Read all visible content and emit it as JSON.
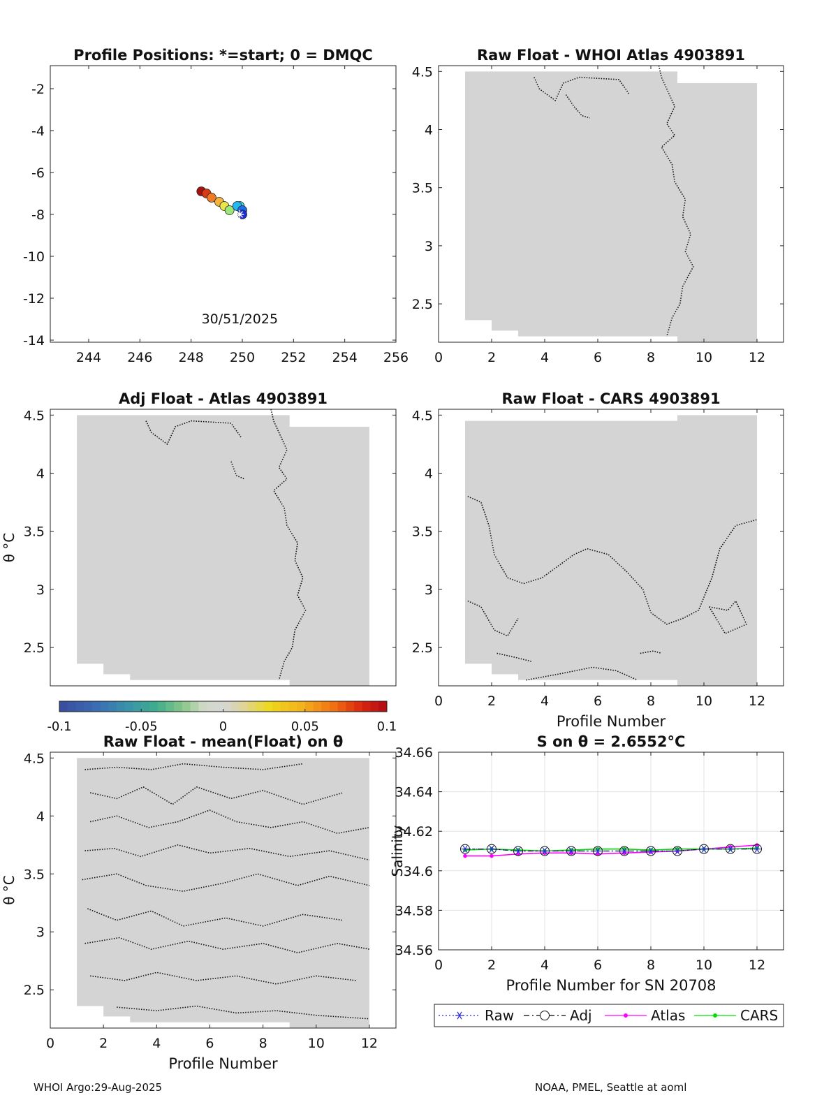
{
  "footer": {
    "left": "WHOI Argo:29-Aug-2025",
    "right": "NOAA, PMEL, Seattle at aoml"
  },
  "colorbar": {
    "ticks": [
      "-0.1",
      "-0.05",
      "0",
      "0.05",
      "0.1"
    ]
  },
  "chart_data": [
    {
      "id": "positions",
      "type": "scatter",
      "title": "Profile Positions: *=start; 0 = DMQC",
      "annotation": "30/51/2025",
      "xlim": [
        242.5,
        256
      ],
      "ylim": [
        -14.1,
        -0.9
      ],
      "xticks": [
        244,
        246,
        248,
        250,
        252,
        254,
        256
      ],
      "yticks": [
        -2,
        -4,
        -6,
        -8,
        -10,
        -12,
        -14
      ],
      "points": [
        {
          "x": 250.0,
          "y": -8.0,
          "color": "#1a2cd6"
        },
        {
          "x": 250.0,
          "y": -7.8,
          "color": "#1e6ef0"
        },
        {
          "x": 249.8,
          "y": -7.6,
          "color": "#25b8f0"
        },
        {
          "x": 249.9,
          "y": -7.6,
          "color": "#40e0e6"
        },
        {
          "x": 249.5,
          "y": -7.8,
          "color": "#9ee87a"
        },
        {
          "x": 249.3,
          "y": -7.6,
          "color": "#e8e64a"
        },
        {
          "x": 249.1,
          "y": -7.4,
          "color": "#f5b53a"
        },
        {
          "x": 248.8,
          "y": -7.2,
          "color": "#f07a22"
        },
        {
          "x": 248.6,
          "y": -7.0,
          "color": "#d93a14"
        },
        {
          "x": 248.4,
          "y": -6.9,
          "color": "#a8110e"
        }
      ],
      "start": {
        "x": 249.9,
        "y": -8.0
      }
    },
    {
      "id": "raw-whoi",
      "type": "heatmap",
      "title": "Raw Float - WHOI Atlas  4903891",
      "xlim": [
        0,
        13
      ],
      "ylim": [
        2.17,
        4.55
      ],
      "xticks": [
        0,
        2,
        4,
        6,
        8,
        10,
        12
      ],
      "yticks": [
        2.5,
        3,
        3.5,
        4,
        4.5
      ],
      "region": [
        [
          1,
          2.36,
          4.5
        ],
        [
          2,
          2.27,
          4.5
        ],
        [
          3,
          2.22,
          4.5
        ],
        [
          8,
          2.22,
          4.5
        ],
        [
          9,
          2.17,
          4.4
        ],
        [
          12,
          2.17,
          4.4
        ]
      ],
      "contours": [
        [
          [
            8.3,
            4.55
          ],
          [
            8.4,
            4.45
          ],
          [
            8.7,
            4.3
          ],
          [
            8.9,
            4.2
          ],
          [
            8.6,
            4.05
          ],
          [
            8.9,
            3.95
          ],
          [
            8.4,
            3.85
          ],
          [
            8.8,
            3.7
          ],
          [
            8.9,
            3.55
          ],
          [
            9.3,
            3.4
          ],
          [
            9.2,
            3.25
          ],
          [
            9.5,
            3.1
          ],
          [
            9.3,
            2.95
          ],
          [
            9.6,
            2.82
          ],
          [
            9.2,
            2.65
          ],
          [
            9.1,
            2.5
          ],
          [
            8.8,
            2.38
          ],
          [
            8.6,
            2.22
          ]
        ],
        [
          [
            3.6,
            4.45
          ],
          [
            3.8,
            4.35
          ],
          [
            4.4,
            4.25
          ],
          [
            4.7,
            4.4
          ],
          [
            5.3,
            4.45
          ],
          [
            6.8,
            4.43
          ],
          [
            7.2,
            4.3
          ]
        ],
        [
          [
            4.8,
            4.3
          ],
          [
            5.1,
            4.2
          ],
          [
            5.4,
            4.12
          ],
          [
            5.7,
            4.1
          ]
        ]
      ]
    },
    {
      "id": "adj-atlas",
      "type": "heatmap",
      "title": "Adj Float - Atlas  4903891",
      "ylabel": "θ °C",
      "xlim": [
        0,
        13
      ],
      "ylim": [
        2.17,
        4.55
      ],
      "xticks": [],
      "yticks": [
        2.5,
        3,
        3.5,
        4,
        4.5
      ],
      "region": [
        [
          1,
          2.36,
          4.5
        ],
        [
          2,
          2.27,
          4.5
        ],
        [
          3,
          2.22,
          4.5
        ],
        [
          8,
          2.22,
          4.5
        ],
        [
          9,
          2.17,
          4.4
        ],
        [
          12,
          2.17,
          4.4
        ]
      ],
      "contours": [
        [
          [
            8.3,
            4.55
          ],
          [
            8.4,
            4.45
          ],
          [
            8.7,
            4.3
          ],
          [
            8.9,
            4.2
          ],
          [
            8.6,
            4.05
          ],
          [
            8.9,
            3.95
          ],
          [
            8.4,
            3.85
          ],
          [
            8.8,
            3.7
          ],
          [
            8.9,
            3.55
          ],
          [
            9.3,
            3.4
          ],
          [
            9.2,
            3.25
          ],
          [
            9.5,
            3.1
          ],
          [
            9.3,
            2.95
          ],
          [
            9.6,
            2.82
          ],
          [
            9.2,
            2.65
          ],
          [
            9.1,
            2.5
          ],
          [
            8.8,
            2.38
          ],
          [
            8.6,
            2.22
          ]
        ],
        [
          [
            3.6,
            4.45
          ],
          [
            3.8,
            4.35
          ],
          [
            4.4,
            4.25
          ],
          [
            4.7,
            4.4
          ],
          [
            5.3,
            4.45
          ],
          [
            6.8,
            4.43
          ],
          [
            7.2,
            4.3
          ]
        ],
        [
          [
            6.8,
            4.1
          ],
          [
            7.0,
            3.98
          ],
          [
            7.3,
            3.95
          ]
        ]
      ]
    },
    {
      "id": "raw-cars",
      "type": "heatmap",
      "title": "Raw Float - CARS  4903891",
      "xlabel": "Profile Number",
      "xlim": [
        0,
        13
      ],
      "ylim": [
        2.17,
        4.55
      ],
      "xticks": [
        0,
        2,
        4,
        6,
        8,
        10,
        12
      ],
      "yticks": [
        2.5,
        3,
        3.5,
        4,
        4.5
      ],
      "region": [
        [
          1,
          2.36,
          4.45
        ],
        [
          2,
          2.27,
          4.45
        ],
        [
          3,
          2.22,
          4.45
        ],
        [
          8,
          2.22,
          4.45
        ],
        [
          9,
          2.17,
          4.5
        ],
        [
          12,
          2.17,
          4.5
        ]
      ],
      "contours": [
        [
          [
            1.1,
            3.8
          ],
          [
            1.6,
            3.75
          ],
          [
            1.9,
            3.55
          ],
          [
            2.1,
            3.3
          ],
          [
            2.6,
            3.1
          ],
          [
            3.2,
            3.05
          ],
          [
            3.9,
            3.1
          ],
          [
            4.5,
            3.2
          ],
          [
            5.1,
            3.3
          ],
          [
            5.6,
            3.35
          ],
          [
            6.4,
            3.3
          ],
          [
            7.1,
            3.15
          ],
          [
            7.7,
            3.0
          ],
          [
            8.0,
            2.8
          ],
          [
            8.6,
            2.7
          ],
          [
            9.2,
            2.75
          ],
          [
            9.8,
            2.82
          ],
          [
            10.3,
            3.1
          ],
          [
            10.6,
            3.35
          ],
          [
            11.2,
            3.55
          ],
          [
            12.0,
            3.6
          ]
        ],
        [
          [
            1.1,
            2.9
          ],
          [
            1.6,
            2.85
          ],
          [
            2.1,
            2.65
          ],
          [
            2.6,
            2.6
          ],
          [
            3.0,
            2.75
          ]
        ],
        [
          [
            2.2,
            2.45
          ],
          [
            2.8,
            2.42
          ],
          [
            3.5,
            2.38
          ]
        ],
        [
          [
            3.3,
            2.22
          ],
          [
            4.5,
            2.27
          ],
          [
            5.8,
            2.33
          ],
          [
            6.7,
            2.3
          ],
          [
            7.5,
            2.22
          ]
        ],
        [
          [
            7.6,
            2.45
          ],
          [
            8.1,
            2.47
          ],
          [
            8.4,
            2.45
          ]
        ],
        [
          [
            10.2,
            2.85
          ],
          [
            10.9,
            2.82
          ],
          [
            11.2,
            2.9
          ],
          [
            11.6,
            2.7
          ],
          [
            10.8,
            2.62
          ],
          [
            10.2,
            2.85
          ]
        ]
      ]
    },
    {
      "id": "raw-mean",
      "type": "heatmap",
      "title": "Raw Float - mean(Float) on θ",
      "xlabel": "Profile Number",
      "ylabel": "θ °C",
      "xlim": [
        0,
        13
      ],
      "ylim": [
        2.17,
        4.55
      ],
      "xticks": [
        0,
        2,
        4,
        6,
        8,
        10,
        12
      ],
      "yticks": [
        2.5,
        3,
        3.5,
        4,
        4.5
      ],
      "region": [
        [
          1,
          2.36,
          4.5
        ],
        [
          2,
          2.27,
          4.5
        ],
        [
          3,
          2.22,
          4.5
        ],
        [
          9,
          2.17,
          4.5
        ],
        [
          12,
          2.17,
          4.5
        ]
      ],
      "contours": [
        [
          [
            1.3,
            4.4
          ],
          [
            2.5,
            4.42
          ],
          [
            3.8,
            4.4
          ],
          [
            5.0,
            4.45
          ],
          [
            6.5,
            4.42
          ],
          [
            8.0,
            4.4
          ],
          [
            9.5,
            4.45
          ]
        ],
        [
          [
            1.5,
            4.2
          ],
          [
            2.5,
            4.15
          ],
          [
            3.5,
            4.25
          ],
          [
            4.6,
            4.1
          ],
          [
            5.5,
            4.25
          ],
          [
            6.8,
            4.15
          ],
          [
            8.0,
            4.22
          ],
          [
            9.5,
            4.1
          ],
          [
            11.0,
            4.2
          ]
        ],
        [
          [
            1.5,
            3.95
          ],
          [
            2.5,
            4.0
          ],
          [
            3.7,
            3.9
          ],
          [
            4.8,
            3.95
          ],
          [
            6.0,
            4.05
          ],
          [
            7.0,
            3.95
          ],
          [
            8.3,
            3.9
          ],
          [
            9.5,
            3.95
          ],
          [
            10.8,
            3.85
          ],
          [
            12.0,
            3.9
          ]
        ],
        [
          [
            1.3,
            3.7
          ],
          [
            2.4,
            3.72
          ],
          [
            3.4,
            3.65
          ],
          [
            4.8,
            3.75
          ],
          [
            6.0,
            3.68
          ],
          [
            7.5,
            3.72
          ],
          [
            9.0,
            3.65
          ],
          [
            10.5,
            3.7
          ],
          [
            12.0,
            3.62
          ]
        ],
        [
          [
            1.2,
            3.45
          ],
          [
            2.5,
            3.5
          ],
          [
            3.6,
            3.4
          ],
          [
            5.0,
            3.35
          ],
          [
            6.5,
            3.42
          ],
          [
            7.8,
            3.5
          ],
          [
            9.3,
            3.4
          ],
          [
            10.5,
            3.48
          ],
          [
            12.0,
            3.4
          ]
        ],
        [
          [
            1.4,
            3.2
          ],
          [
            2.5,
            3.1
          ],
          [
            3.8,
            3.18
          ],
          [
            5.0,
            3.05
          ],
          [
            6.6,
            3.12
          ],
          [
            8.0,
            3.05
          ],
          [
            9.5,
            3.15
          ],
          [
            11.0,
            3.1
          ]
        ],
        [
          [
            1.3,
            2.9
          ],
          [
            2.6,
            2.95
          ],
          [
            3.8,
            2.85
          ],
          [
            5.2,
            2.92
          ],
          [
            6.5,
            2.85
          ],
          [
            8.0,
            2.9
          ],
          [
            9.3,
            2.82
          ],
          [
            10.8,
            2.9
          ],
          [
            12.0,
            2.85
          ]
        ],
        [
          [
            1.5,
            2.62
          ],
          [
            2.8,
            2.58
          ],
          [
            4.0,
            2.65
          ],
          [
            5.5,
            2.58
          ],
          [
            7.0,
            2.62
          ],
          [
            8.5,
            2.55
          ],
          [
            10.0,
            2.62
          ],
          [
            11.5,
            2.58
          ]
        ],
        [
          [
            2.5,
            2.35
          ],
          [
            4.0,
            2.32
          ],
          [
            5.5,
            2.36
          ],
          [
            7.0,
            2.3
          ],
          [
            8.5,
            2.32
          ],
          [
            10.0,
            2.28
          ],
          [
            12.0,
            2.25
          ]
        ]
      ]
    },
    {
      "id": "salinity",
      "type": "line",
      "title": "S on θ = 2.6552°C",
      "xlabel": "Profile Number for SN 20708",
      "ylabel": "Salinity",
      "xlim": [
        0,
        13
      ],
      "ylim": [
        34.56,
        34.66
      ],
      "xticks": [
        0,
        2,
        4,
        6,
        8,
        10,
        12
      ],
      "yticks": [
        34.56,
        34.58,
        34.6,
        34.62,
        34.64,
        34.66
      ],
      "grid": true,
      "legend_position": "bottom",
      "x": [
        1,
        2,
        3,
        4,
        5,
        6,
        7,
        8,
        9,
        10,
        11,
        12
      ],
      "series": [
        {
          "name": "Raw",
          "color": "#2b2bd6",
          "values": [
            34.611,
            34.611,
            34.61,
            34.61,
            34.61,
            34.61,
            34.61,
            34.61,
            34.61,
            34.611,
            34.611,
            34.611
          ]
        },
        {
          "name": "Adj",
          "color": "#000000",
          "values": [
            34.611,
            34.611,
            34.61,
            34.61,
            34.61,
            34.61,
            34.61,
            34.61,
            34.61,
            34.611,
            34.611,
            34.611
          ]
        },
        {
          "name": "Atlas",
          "color": "#ff00ff",
          "values": [
            34.6075,
            34.6075,
            34.6085,
            34.609,
            34.609,
            34.6085,
            34.609,
            34.6095,
            34.61,
            34.611,
            34.612,
            34.613
          ]
        },
        {
          "name": "CARS",
          "color": "#00e000",
          "values": [
            34.6105,
            34.611,
            34.6105,
            34.61,
            34.6105,
            34.611,
            34.611,
            34.6105,
            34.611,
            34.611,
            34.611,
            34.6115
          ]
        }
      ]
    }
  ]
}
